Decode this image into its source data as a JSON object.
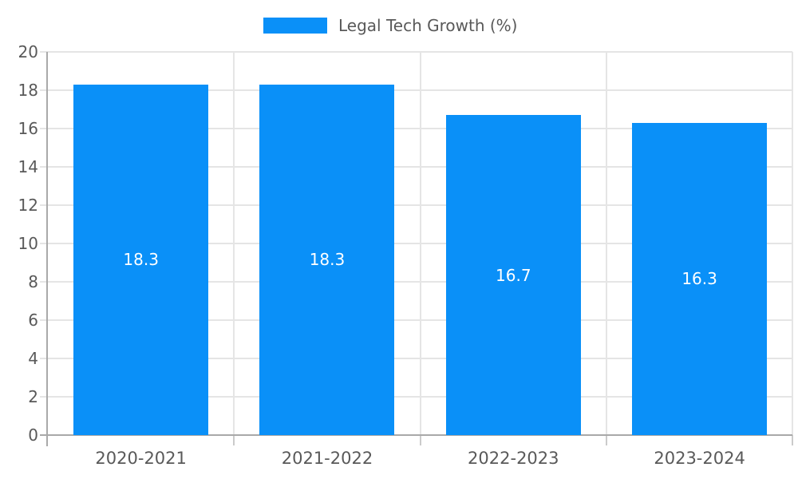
{
  "chart_data": {
    "type": "bar",
    "title": "",
    "xlabel": "",
    "ylabel": "",
    "legend_label": "Legal Tech Growth (%)",
    "legend_position": "top-center",
    "categories": [
      "2020-2021",
      "2021-2022",
      "2022-2023",
      "2023-2024"
    ],
    "values": [
      18.3,
      18.3,
      16.7,
      16.3
    ],
    "value_labels": [
      "18.3",
      "18.3",
      "16.7",
      "16.3"
    ],
    "ylim": [
      0,
      20
    ],
    "ytick_step": 2,
    "yticks": [
      0,
      2,
      4,
      6,
      8,
      10,
      12,
      14,
      16,
      18,
      20
    ],
    "grid": true,
    "colors": {
      "bar": "#0a90f8",
      "bar_value_text": "#ffffff",
      "grid_line": "#e5e5e5",
      "axis_spine": "#a9a9a9",
      "tick_mark": "#cbcbcb",
      "tick_text": "#595959",
      "legend_text": "#595959",
      "background": "#ffffff"
    }
  }
}
